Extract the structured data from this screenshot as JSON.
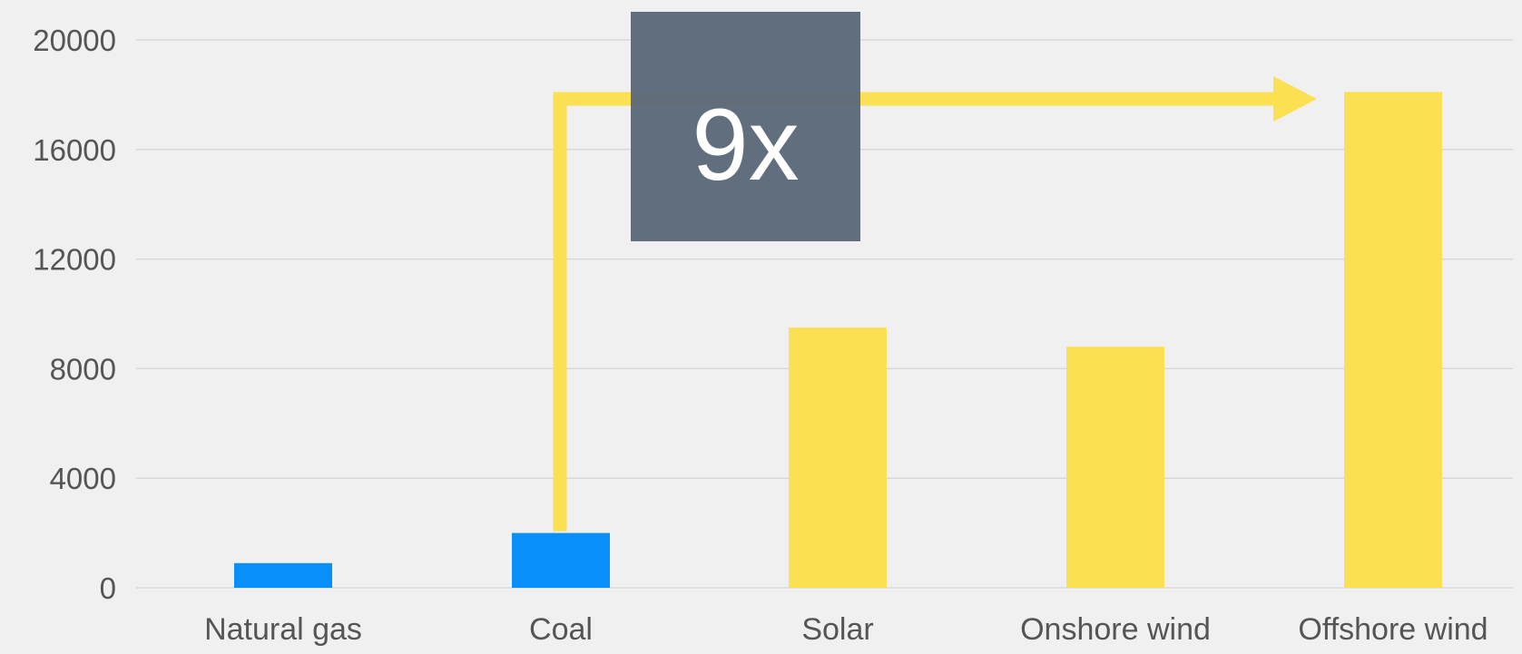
{
  "chart_data": {
    "type": "bar",
    "categories": [
      "Natural gas",
      "Coal",
      "Solar",
      "Onshore wind",
      "Offshore wind"
    ],
    "values": [
      900,
      2000,
      9500,
      8800,
      18100
    ],
    "bar_colors": [
      "#0a8ff9",
      "#0a8ff9",
      "#fce053",
      "#fce053",
      "#fce053"
    ],
    "ylim": [
      0,
      20000
    ],
    "yticks": [
      "0",
      "4000",
      "8000",
      "12000",
      "16000",
      "20000"
    ],
    "ytick_values": [
      0,
      4000,
      8000,
      12000,
      16000,
      20000
    ],
    "grid": true,
    "title": "",
    "xlabel": "",
    "ylabel": "",
    "annotation": {
      "text": "9x",
      "from_category": "Coal",
      "to_category": "Offshore wind",
      "arrow_color": "#fce053",
      "box_color": "#5e6b7b"
    }
  },
  "colors": {
    "background": "#f0f0f0",
    "grid": "#d9d9d9",
    "tick_text": "#555555"
  }
}
